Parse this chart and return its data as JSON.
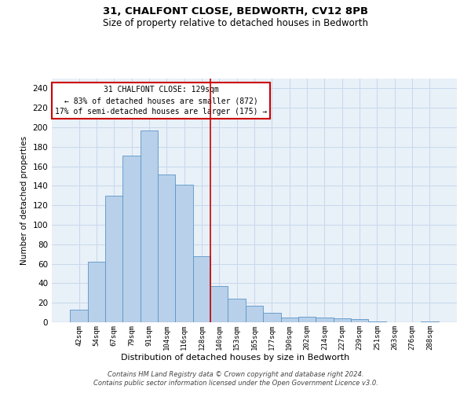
{
  "title1": "31, CHALFONT CLOSE, BEDWORTH, CV12 8PB",
  "title2": "Size of property relative to detached houses in Bedworth",
  "xlabel": "Distribution of detached houses by size in Bedworth",
  "ylabel": "Number of detached properties",
  "bar_labels": [
    "42sqm",
    "54sqm",
    "67sqm",
    "79sqm",
    "91sqm",
    "104sqm",
    "116sqm",
    "128sqm",
    "140sqm",
    "153sqm",
    "165sqm",
    "177sqm",
    "190sqm",
    "202sqm",
    "214sqm",
    "227sqm",
    "239sqm",
    "251sqm",
    "263sqm",
    "276sqm",
    "288sqm"
  ],
  "bar_heights": [
    13,
    62,
    130,
    171,
    197,
    152,
    141,
    68,
    37,
    24,
    17,
    10,
    5,
    6,
    5,
    4,
    3,
    1,
    0,
    0,
    1
  ],
  "bar_color": "#b8d0ea",
  "bar_edge_color": "#5a96c8",
  "vline_x": 7.5,
  "vline_color": "#cc0000",
  "annotation_title": "31 CHALFONT CLOSE: 129sqm",
  "annotation_line1": "← 83% of detached houses are smaller (872)",
  "annotation_line2": "17% of semi-detached houses are larger (175) →",
  "annotation_box_color": "#ffffff",
  "annotation_box_edge_color": "#cc0000",
  "ylim": [
    0,
    250
  ],
  "yticks": [
    0,
    20,
    40,
    60,
    80,
    100,
    120,
    140,
    160,
    180,
    200,
    220,
    240
  ],
  "grid_color": "#c8d8eb",
  "footer": "Contains HM Land Registry data © Crown copyright and database right 2024.\nContains public sector information licensed under the Open Government Licence v3.0.",
  "bg_color": "#e8f0f8"
}
